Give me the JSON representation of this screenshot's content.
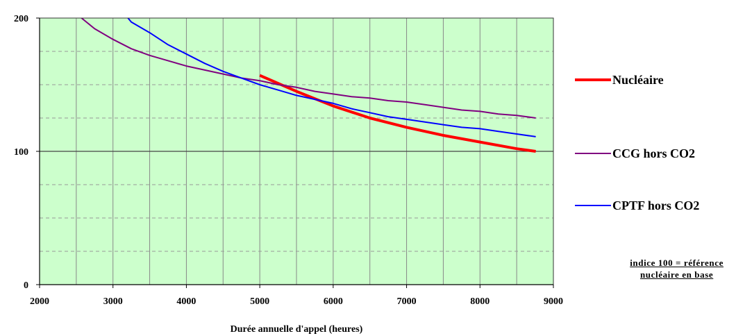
{
  "chart_data": {
    "type": "line",
    "title": "",
    "xlabel": "Durée annuelle d'appel (heures)",
    "ylabel": "",
    "xlim": [
      2000,
      9000
    ],
    "ylim": [
      0,
      200
    ],
    "x_ticks": [
      2000,
      3000,
      4000,
      5000,
      6000,
      7000,
      8000,
      9000
    ],
    "x_minor_grid_step": 500,
    "y_ticks": [
      0,
      100,
      200
    ],
    "y_minor_grid_step": 25,
    "grid": true,
    "legend_position": "right",
    "plot_background": "#ccffcc",
    "series": [
      {
        "name": "Nucléaire",
        "color": "#ff0000",
        "x": [
          5000,
          5500,
          6000,
          6500,
          7000,
          7500,
          8000,
          8500,
          8760
        ],
        "y": [
          157,
          145,
          134,
          125,
          118,
          112,
          107,
          102,
          100
        ]
      },
      {
        "name": "CCG hors CO2",
        "color": "#800080",
        "x": [
          2550,
          2750,
          3000,
          3250,
          3500,
          3750,
          4000,
          4250,
          4500,
          4750,
          5000,
          5250,
          5500,
          5750,
          6000,
          6250,
          6500,
          6750,
          7000,
          7250,
          7500,
          7750,
          8000,
          8250,
          8500,
          8760
        ],
        "y": [
          201,
          192,
          184,
          177,
          172,
          168,
          164,
          161,
          158,
          155,
          153,
          150,
          148,
          145,
          143,
          141,
          140,
          138,
          137,
          135,
          133,
          131,
          130,
          128,
          127,
          125
        ]
      },
      {
        "name": "CPTF hors CO2",
        "color": "#0000ff",
        "x": [
          3190,
          3250,
          3500,
          3750,
          4000,
          4250,
          4500,
          4750,
          5000,
          5250,
          5500,
          5750,
          6000,
          6250,
          6500,
          6750,
          7000,
          7250,
          7500,
          7750,
          8000,
          8250,
          8500,
          8760
        ],
        "y": [
          201,
          197,
          189,
          180,
          173,
          166,
          160,
          155,
          150,
          146,
          142,
          139,
          136,
          132,
          129,
          126,
          124,
          122,
          120,
          118,
          117,
          115,
          113,
          111
        ]
      }
    ],
    "annotation": [
      "indice 100 = référence",
      "nucléaire en base"
    ]
  }
}
